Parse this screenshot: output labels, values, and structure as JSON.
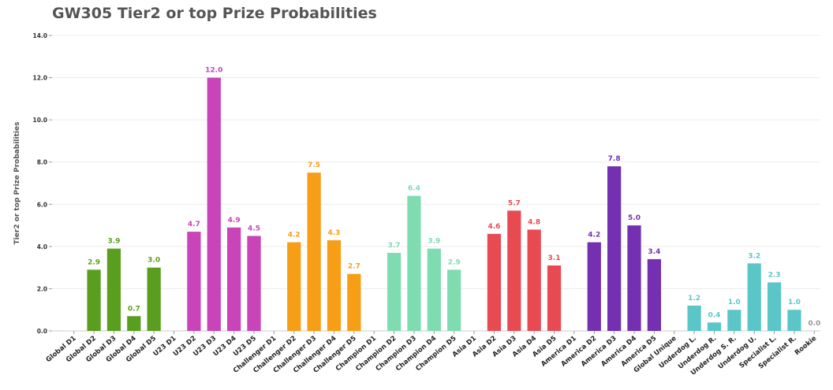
{
  "chart_data": {
    "type": "bar",
    "title": "GW305 Tier2 or top Prize Probabilities",
    "xlabel": "",
    "ylabel": "Tier2 or top Prize Probabilities",
    "ylim": [
      0,
      14
    ],
    "yticks": [
      "0.0",
      "2.0",
      "4.0",
      "6.0",
      "8.0",
      "10.0",
      "12.0",
      "14.0"
    ],
    "grid": true,
    "categories": [
      "Global D1",
      "Global D2",
      "Global D3",
      "Global D4",
      "Global D5",
      "U23 D1",
      "U23 D2",
      "U23 D3",
      "U23 D4",
      "U23 D5",
      "Challenger D1",
      "Challenger D2",
      "Challenger D3",
      "Challenger D4",
      "Challenger D5",
      "Champion D1",
      "Champion D2",
      "Champion D3",
      "Champion D4",
      "Champion D5",
      "Asia D1",
      "Asia D2",
      "Asia D3",
      "Asia D4",
      "Asia D5",
      "America D1",
      "America D2",
      "America D3",
      "America D4",
      "America D5",
      "Global Unique",
      "Underdog L.",
      "Underdog R.",
      "Underdog S. R.",
      "Underdog U.",
      "Specialist L.",
      "Specialist R.",
      "Rookie"
    ],
    "values": [
      null,
      2.9,
      3.9,
      0.7,
      3.0,
      null,
      4.7,
      12.0,
      4.9,
      4.5,
      null,
      4.2,
      7.5,
      4.3,
      2.7,
      null,
      3.7,
      6.4,
      3.9,
      2.9,
      null,
      4.6,
      5.7,
      4.8,
      3.1,
      null,
      4.2,
      7.8,
      5.0,
      3.4,
      null,
      1.2,
      0.4,
      1.0,
      3.2,
      2.3,
      1.0,
      0.0
    ],
    "value_labels": [
      "",
      "2.9",
      "3.9",
      "0.7",
      "3.0",
      "",
      "4.7",
      "12.0",
      "4.9",
      "4.5",
      "",
      "4.2",
      "7.5",
      "4.3",
      "2.7",
      "",
      "3.7",
      "6.4",
      "3.9",
      "2.9",
      "",
      "4.6",
      "5.7",
      "4.8",
      "3.1",
      "",
      "4.2",
      "7.8",
      "5.0",
      "3.4",
      "",
      "1.2",
      "0.4",
      "1.0",
      "3.2",
      "2.3",
      "1.0",
      "0.0"
    ],
    "colors": [
      "#5a9e1f",
      "#5a9e1f",
      "#5a9e1f",
      "#5a9e1f",
      "#5a9e1f",
      "#c844b8",
      "#c844b8",
      "#c844b8",
      "#c844b8",
      "#c844b8",
      "#f59e16",
      "#f59e16",
      "#f59e16",
      "#f59e16",
      "#f59e16",
      "#7fdcb0",
      "#7fdcb0",
      "#7fdcb0",
      "#7fdcb0",
      "#7fdcb0",
      "#e84a52",
      "#e84a52",
      "#e84a52",
      "#e84a52",
      "#e84a52",
      "#7430b0",
      "#7430b0",
      "#7430b0",
      "#7430b0",
      "#7430b0",
      "#5bc6c8",
      "#5bc6c8",
      "#5bc6c8",
      "#5bc6c8",
      "#5bc6c8",
      "#5bc6c8",
      "#5bc6c8",
      "#999999"
    ]
  }
}
